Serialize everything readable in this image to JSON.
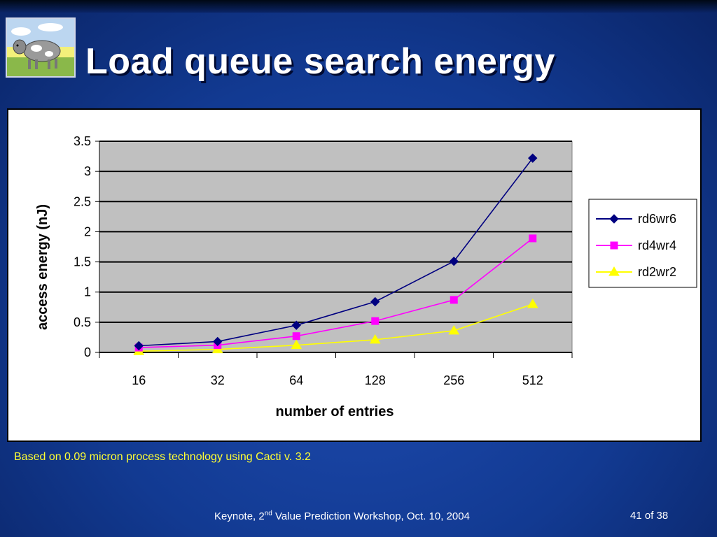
{
  "slide": {
    "title": "Load queue search energy",
    "note": "Based on 0.09 micron process technology using Cacti v. 3.2",
    "footer": {
      "prefix": "Keynote, 2",
      "sup": "nd",
      "suffix": " Value Prediction Workshop, Oct. 10, 2004",
      "page": "41 of 38"
    }
  },
  "colors": {
    "background": "#123a92",
    "plot_area": "#c0c0c0",
    "note_text": "#ffff33"
  },
  "chart_data": {
    "type": "line",
    "categories": [
      "16",
      "32",
      "64",
      "128",
      "256",
      "512"
    ],
    "xlabel": "number of entries",
    "ylabel": "access energy (nJ)",
    "ylim": [
      0,
      3.5
    ],
    "yticks": [
      "0",
      "0.5",
      "1",
      "1.5",
      "2",
      "2.5",
      "3",
      "3.5"
    ],
    "grid": true,
    "legend_position": "right",
    "series": [
      {
        "name": "rd6wr6",
        "color": "#000080",
        "marker": "diamond",
        "values": [
          0.11,
          0.18,
          0.45,
          0.84,
          1.51,
          3.22
        ]
      },
      {
        "name": "rd4wr4",
        "color": "#ff00ff",
        "marker": "square",
        "values": [
          0.08,
          0.12,
          0.27,
          0.52,
          0.87,
          1.89
        ]
      },
      {
        "name": "rd2wr2",
        "color": "#ffff00",
        "marker": "triangle",
        "values": [
          0.02,
          0.05,
          0.12,
          0.21,
          0.36,
          0.8
        ]
      }
    ]
  }
}
